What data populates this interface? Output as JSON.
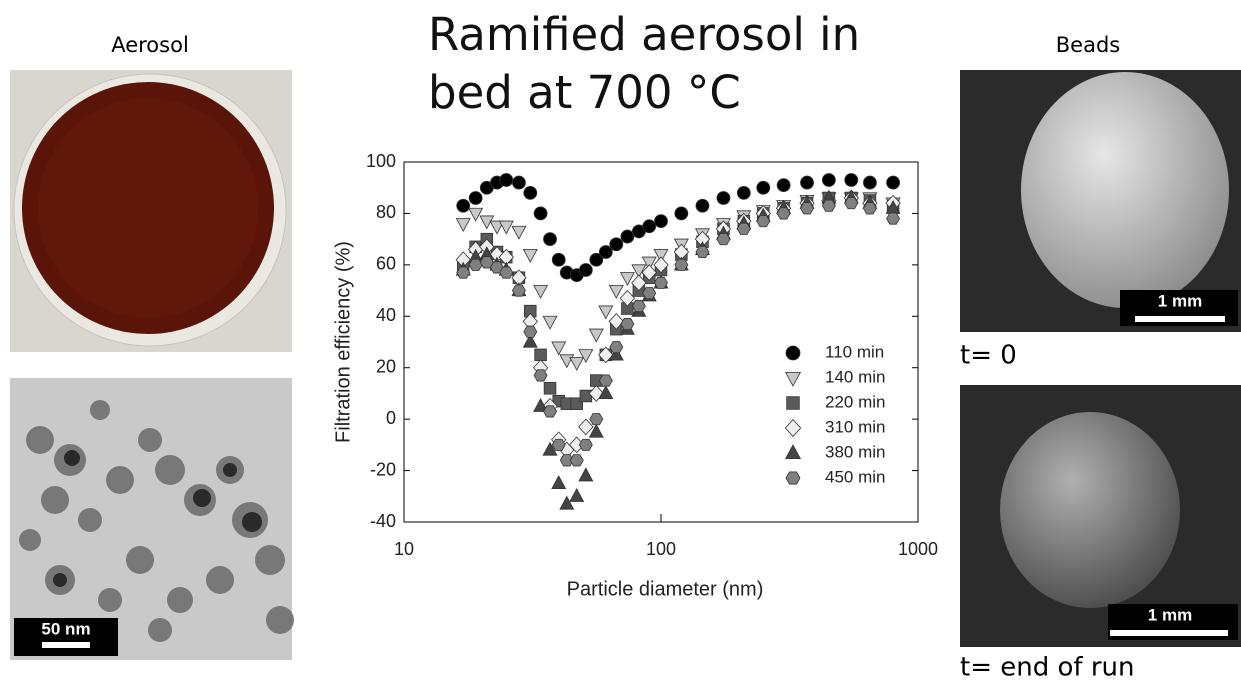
{
  "slide": {
    "left_heading": "Aerosol",
    "right_heading": "Beads",
    "tem_scale": "50 nm",
    "bead_scale_top": "1 mm",
    "bead_scale_bottom": "1 mm",
    "caption_top": "t= 0",
    "caption_bottom": "t= end of run"
  },
  "chart_data": {
    "type": "scatter",
    "title": "Ramified aerosol in bed at 700 °C",
    "x_label": "Particle diameter (nm)",
    "y_label": "Filtration efficiency (%)",
    "log_x": true,
    "xlim": [
      10,
      1000
    ],
    "xticks": [
      10,
      100,
      1000
    ],
    "ylim": [
      -40,
      100
    ],
    "yticks": [
      -40,
      -20,
      0,
      20,
      40,
      60,
      80,
      100
    ],
    "x": [
      17,
      19,
      21,
      23,
      25,
      28,
      31,
      34,
      37,
      40,
      43,
      47,
      51,
      56,
      61,
      67,
      74,
      82,
      90,
      100,
      120,
      145,
      175,
      210,
      250,
      300,
      370,
      450,
      550,
      650,
      800
    ],
    "series": [
      {
        "name": "110 min",
        "color": "#000000",
        "marker": "circle",
        "values": [
          83,
          86,
          90,
          92,
          93,
          92,
          88,
          80,
          70,
          62,
          57,
          56,
          58,
          62,
          65,
          68,
          71,
          73,
          75,
          77,
          80,
          83,
          86,
          88,
          90,
          91,
          92,
          93,
          93,
          92,
          92
        ]
      },
      {
        "name": "140 min",
        "color": "#c8c8c8",
        "marker": "triangle-down",
        "values": [
          76,
          80,
          77,
          75,
          75,
          73,
          64,
          50,
          38,
          28,
          23,
          22,
          25,
          33,
          42,
          50,
          55,
          58,
          61,
          64,
          68,
          72,
          76,
          79,
          81,
          83,
          85,
          86,
          86,
          86,
          84
        ]
      },
      {
        "name": "220 min",
        "color": "#5a5a5a",
        "marker": "square",
        "values": [
          60,
          67,
          70,
          65,
          63,
          55,
          42,
          25,
          12,
          7,
          6,
          6,
          9,
          15,
          25,
          35,
          43,
          50,
          55,
          58,
          64,
          69,
          74,
          77,
          80,
          82,
          84,
          86,
          86,
          85,
          83
        ]
      },
      {
        "name": "310 min",
        "color": "#eeeeee",
        "marker": "diamond",
        "values": [
          62,
          66,
          67,
          64,
          63,
          55,
          38,
          20,
          5,
          -8,
          -12,
          -10,
          -3,
          10,
          25,
          38,
          47,
          53,
          57,
          60,
          65,
          70,
          74,
          77,
          80,
          82,
          84,
          85,
          86,
          84,
          84
        ]
      },
      {
        "name": "380 min",
        "color": "#444444",
        "marker": "triangle",
        "values": [
          58,
          63,
          64,
          60,
          58,
          50,
          30,
          5,
          -12,
          -25,
          -33,
          -30,
          -22,
          -5,
          10,
          25,
          35,
          42,
          48,
          53,
          60,
          66,
          72,
          76,
          79,
          82,
          84,
          86,
          86,
          84,
          82
        ]
      },
      {
        "name": "450 min",
        "color": "#808080",
        "marker": "hexagon",
        "values": [
          57,
          60,
          61,
          59,
          57,
          50,
          34,
          17,
          3,
          -10,
          -16,
          -16,
          -10,
          0,
          15,
          28,
          37,
          44,
          49,
          53,
          60,
          65,
          70,
          74,
          77,
          80,
          82,
          83,
          84,
          82,
          78
        ]
      }
    ]
  }
}
